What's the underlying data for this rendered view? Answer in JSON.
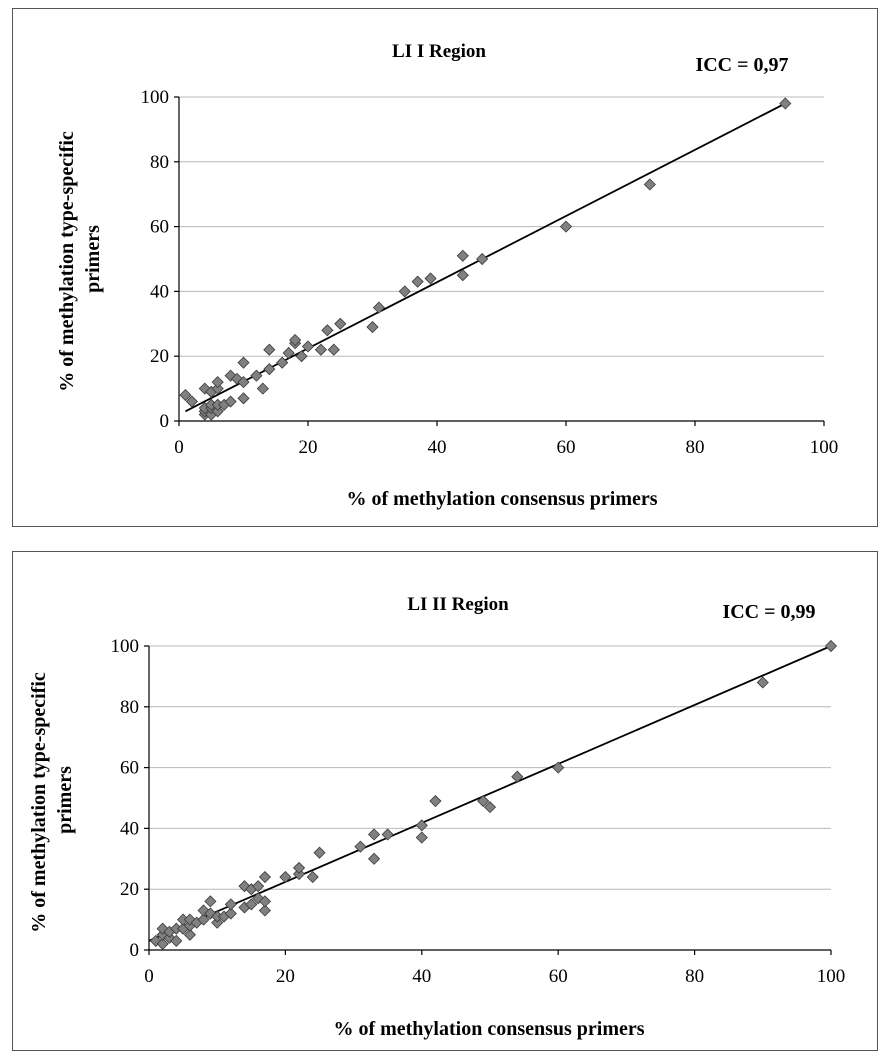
{
  "chart_data": [
    {
      "type": "scatter",
      "title": "LI I Region",
      "annotation": "ICC = 0,97",
      "xlabel": "% of methylation consensus primers",
      "ylabel": "% of methylation type-specific primers",
      "xlim": [
        0,
        100
      ],
      "ylim": [
        0,
        100
      ],
      "xticks": [
        "0",
        "20",
        "40",
        "60",
        "80",
        "100"
      ],
      "yticks": [
        "0",
        "20",
        "40",
        "60",
        "80",
        "100"
      ],
      "grid": true,
      "trendline": {
        "x": [
          1,
          94
        ],
        "y": [
          3,
          98
        ]
      },
      "points": [
        {
          "x": 1,
          "y": 8
        },
        {
          "x": 2,
          "y": 6
        },
        {
          "x": 4,
          "y": 2
        },
        {
          "x": 4,
          "y": 3
        },
        {
          "x": 4,
          "y": 4
        },
        {
          "x": 4,
          "y": 10
        },
        {
          "x": 5,
          "y": 2
        },
        {
          "x": 5,
          "y": 4
        },
        {
          "x": 5,
          "y": 5
        },
        {
          "x": 5,
          "y": 9
        },
        {
          "x": 6,
          "y": 3
        },
        {
          "x": 6,
          "y": 5
        },
        {
          "x": 6,
          "y": 10
        },
        {
          "x": 6,
          "y": 12
        },
        {
          "x": 7,
          "y": 5
        },
        {
          "x": 8,
          "y": 6
        },
        {
          "x": 8,
          "y": 14
        },
        {
          "x": 9,
          "y": 13
        },
        {
          "x": 10,
          "y": 7
        },
        {
          "x": 10,
          "y": 12
        },
        {
          "x": 10,
          "y": 18
        },
        {
          "x": 12,
          "y": 14
        },
        {
          "x": 13,
          "y": 10
        },
        {
          "x": 14,
          "y": 16
        },
        {
          "x": 14,
          "y": 22
        },
        {
          "x": 16,
          "y": 18
        },
        {
          "x": 17,
          "y": 21
        },
        {
          "x": 18,
          "y": 24
        },
        {
          "x": 18,
          "y": 25
        },
        {
          "x": 19,
          "y": 20
        },
        {
          "x": 20,
          "y": 23
        },
        {
          "x": 22,
          "y": 22
        },
        {
          "x": 23,
          "y": 28
        },
        {
          "x": 24,
          "y": 22
        },
        {
          "x": 25,
          "y": 30
        },
        {
          "x": 30,
          "y": 29
        },
        {
          "x": 31,
          "y": 35
        },
        {
          "x": 35,
          "y": 40
        },
        {
          "x": 37,
          "y": 43
        },
        {
          "x": 39,
          "y": 44
        },
        {
          "x": 44,
          "y": 45
        },
        {
          "x": 44,
          "y": 51
        },
        {
          "x": 47,
          "y": 50
        },
        {
          "x": 60,
          "y": 60
        },
        {
          "x": 73,
          "y": 73
        },
        {
          "x": 94,
          "y": 98
        }
      ]
    },
    {
      "type": "scatter",
      "title": "LI II Region",
      "annotation": "ICC = 0,99",
      "xlabel": "% of methylation consensus primers",
      "ylabel": "% of methylation type-specific primers",
      "xlim": [
        0,
        100
      ],
      "ylim": [
        0,
        100
      ],
      "xticks": [
        "0",
        "20",
        "40",
        "60",
        "80",
        "100"
      ],
      "yticks": [
        "0",
        "20",
        "40",
        "60",
        "80",
        "100"
      ],
      "grid": true,
      "trendline": {
        "x": [
          0,
          100
        ],
        "y": [
          3,
          100
        ]
      },
      "points": [
        {
          "x": 1,
          "y": 3
        },
        {
          "x": 2,
          "y": 2
        },
        {
          "x": 2,
          "y": 5
        },
        {
          "x": 2,
          "y": 7
        },
        {
          "x": 3,
          "y": 4
        },
        {
          "x": 3,
          "y": 6
        },
        {
          "x": 4,
          "y": 3
        },
        {
          "x": 4,
          "y": 7
        },
        {
          "x": 5,
          "y": 7
        },
        {
          "x": 5,
          "y": 10
        },
        {
          "x": 6,
          "y": 5
        },
        {
          "x": 6,
          "y": 8
        },
        {
          "x": 6,
          "y": 10
        },
        {
          "x": 7,
          "y": 9
        },
        {
          "x": 8,
          "y": 10
        },
        {
          "x": 8,
          "y": 13
        },
        {
          "x": 9,
          "y": 12
        },
        {
          "x": 9,
          "y": 16
        },
        {
          "x": 10,
          "y": 9
        },
        {
          "x": 10,
          "y": 11
        },
        {
          "x": 11,
          "y": 11
        },
        {
          "x": 12,
          "y": 12
        },
        {
          "x": 12,
          "y": 15
        },
        {
          "x": 14,
          "y": 14
        },
        {
          "x": 14,
          "y": 21
        },
        {
          "x": 15,
          "y": 15
        },
        {
          "x": 15,
          "y": 20
        },
        {
          "x": 16,
          "y": 17
        },
        {
          "x": 16,
          "y": 21
        },
        {
          "x": 17,
          "y": 13
        },
        {
          "x": 17,
          "y": 16
        },
        {
          "x": 17,
          "y": 24
        },
        {
          "x": 20,
          "y": 24
        },
        {
          "x": 22,
          "y": 25
        },
        {
          "x": 22,
          "y": 27
        },
        {
          "x": 24,
          "y": 24
        },
        {
          "x": 25,
          "y": 32
        },
        {
          "x": 31,
          "y": 34
        },
        {
          "x": 33,
          "y": 30
        },
        {
          "x": 33,
          "y": 38
        },
        {
          "x": 35,
          "y": 38
        },
        {
          "x": 40,
          "y": 37
        },
        {
          "x": 40,
          "y": 41
        },
        {
          "x": 42,
          "y": 49
        },
        {
          "x": 49,
          "y": 49
        },
        {
          "x": 50,
          "y": 47
        },
        {
          "x": 54,
          "y": 57
        },
        {
          "x": 60,
          "y": 60
        },
        {
          "x": 90,
          "y": 88
        },
        {
          "x": 100,
          "y": 100
        }
      ]
    }
  ]
}
